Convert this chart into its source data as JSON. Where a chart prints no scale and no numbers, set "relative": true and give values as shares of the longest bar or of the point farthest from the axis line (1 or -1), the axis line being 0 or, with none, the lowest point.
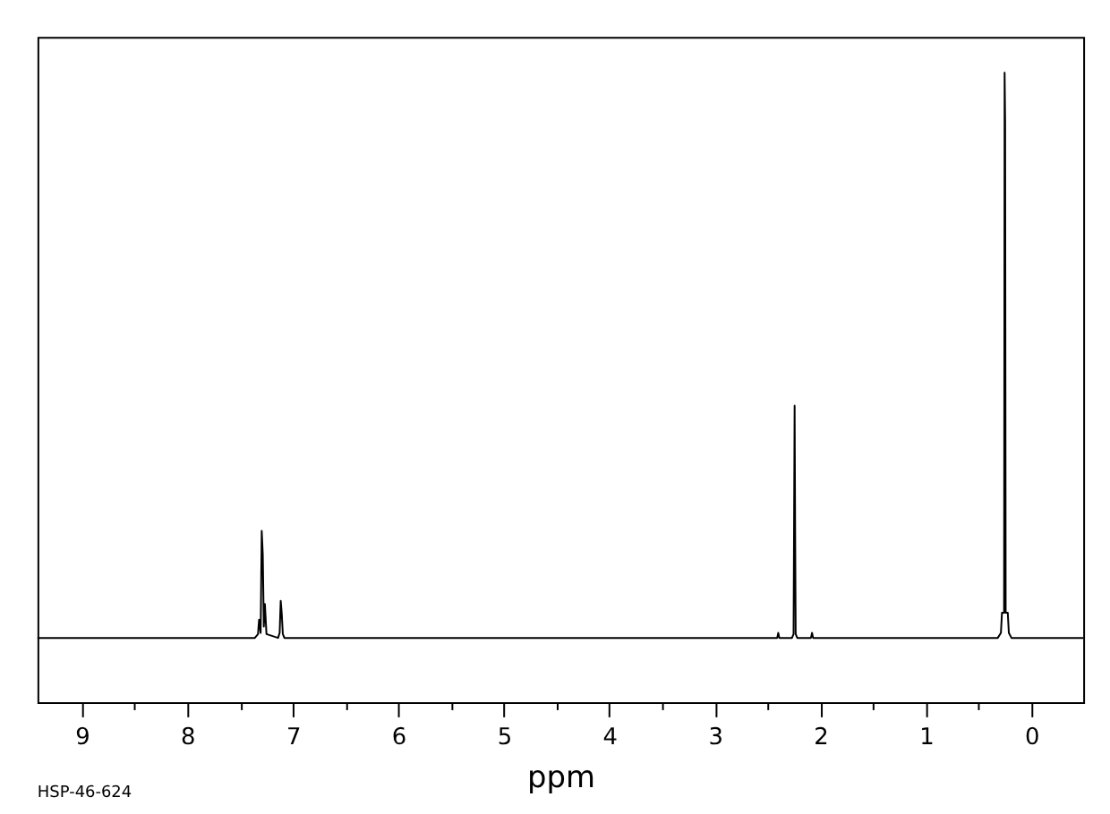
{
  "chart_data": {
    "type": "line",
    "xlabel": "ppm",
    "annotations": [
      "HSP-46-624"
    ],
    "relative": true,
    "line_style": "solid",
    "xlim": [
      9.42,
      -0.49
    ],
    "xticks": [
      9,
      {
        "value": 8.5,
        "label": null
      },
      8,
      {
        "value": 7.5,
        "label": null
      },
      7,
      {
        "value": 6.5,
        "label": null
      },
      6,
      {
        "value": 5.5,
        "label": null
      },
      5,
      {
        "value": 4.5,
        "label": null
      },
      4,
      {
        "value": 3.5,
        "label": null
      },
      3,
      {
        "value": 2.5,
        "label": null
      },
      2,
      {
        "value": 1.5,
        "label": null
      },
      1,
      {
        "value": 0.5,
        "label": null
      },
      0
    ],
    "x": [
      9.42,
      7.36,
      7.33,
      7.32,
      7.305,
      7.295,
      7.285,
      7.275,
      7.265,
      7.25,
      7.14,
      7.125,
      7.115,
      7.105,
      7.095,
      7.08,
      2.41,
      2.4,
      2.39,
      2.27,
      2.255,
      2.245,
      2.24,
      2.235,
      2.22,
      2.09,
      2.08,
      2.07,
      0.32,
      0.29,
      0.28,
      0.26,
      0.255,
      0.25,
      0.245,
      0.225,
      0.215,
      0.19,
      -0.49
    ],
    "series": [
      {
        "color": "#000000",
        "values": [
          0.102,
          0.102,
          0.108,
          0.131,
          0.11,
          0.272,
          0.235,
          0.12,
          0.156,
          0.108,
          0.102,
          0.11,
          0.161,
          0.14,
          0.108,
          0.102,
          0.102,
          0.11,
          0.102,
          0.102,
          0.108,
          0.471,
          0.272,
          0.108,
          0.102,
          0.102,
          0.11,
          0.102,
          0.102,
          0.11,
          0.142,
          0.142,
          1.0,
          0.921,
          0.142,
          0.142,
          0.11,
          0.102,
          0.102
        ]
      }
    ]
  }
}
